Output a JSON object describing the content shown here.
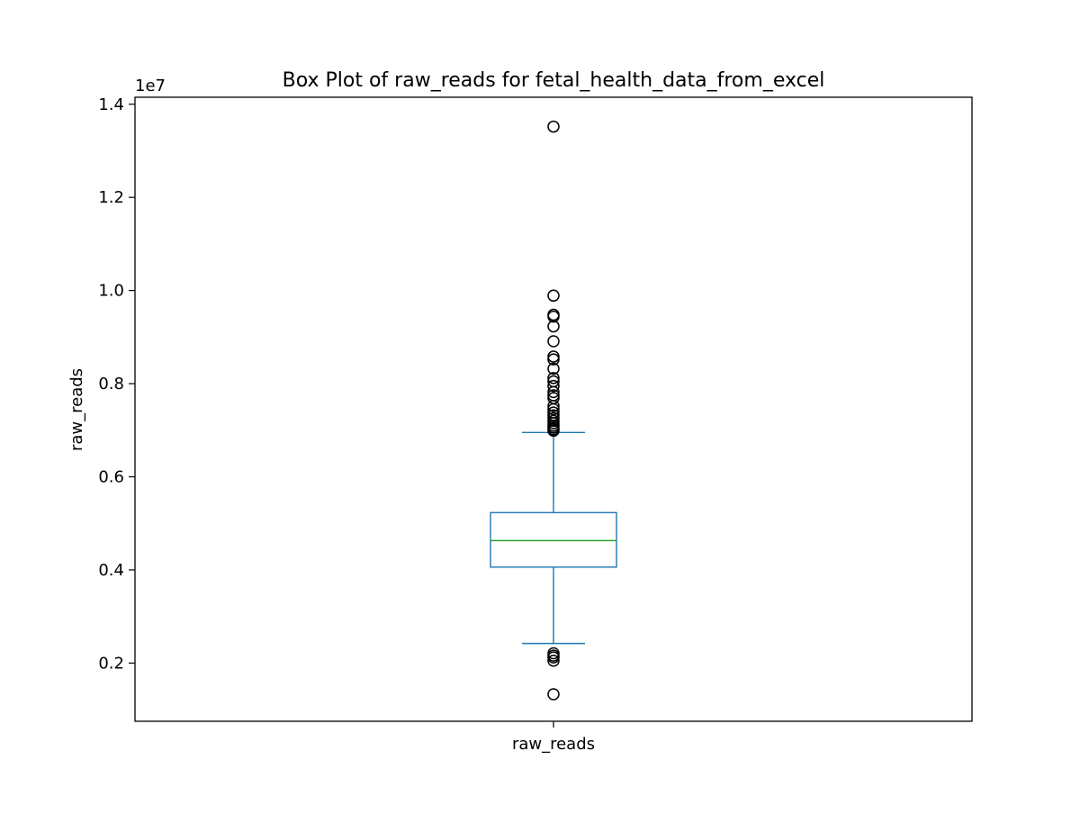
{
  "chart_data": {
    "type": "box",
    "title": "Box Plot of raw_reads for fetal_health_data_from_excel",
    "ylabel": "raw_reads",
    "xlabel": "",
    "categories": [
      "raw_reads"
    ],
    "y_offset_label": "1e7",
    "y_scale_factor": 10000000,
    "ylim": [
      750000,
      14150000
    ],
    "yticks": [
      2000000,
      4000000,
      6000000,
      8000000,
      10000000,
      12000000,
      14000000
    ],
    "ytick_labels": [
      "0.2",
      "0.4",
      "0.6",
      "0.8",
      "1.0",
      "1.2",
      "1.4"
    ],
    "grid": false,
    "series": [
      {
        "category": "raw_reads",
        "whisker_low": 2420000,
        "q1": 4060000,
        "median": 4630000,
        "q3": 5230000,
        "whisker_high": 6950000,
        "outliers": [
          13520000,
          9890000,
          9480000,
          9440000,
          9230000,
          8910000,
          8580000,
          8520000,
          8320000,
          8120000,
          8050000,
          7950000,
          7820000,
          7750000,
          7690000,
          7520000,
          7450000,
          7380000,
          7320000,
          7260000,
          7200000,
          7150000,
          7100000,
          7060000,
          7020000,
          6990000,
          2210000,
          2160000,
          2120000,
          2050000,
          1330000
        ]
      }
    ],
    "colors": {
      "box": "#1f77b4",
      "median": "#2ca02c",
      "outlier": "#000000",
      "axes": "#000000"
    }
  }
}
